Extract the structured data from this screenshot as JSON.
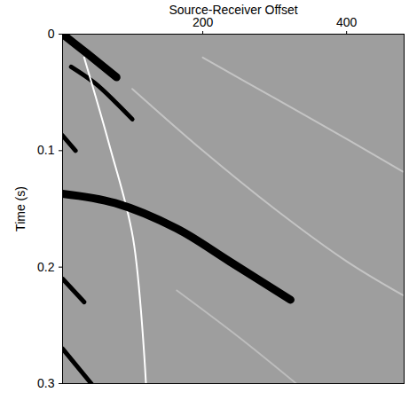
{
  "chart_data": {
    "type": "line",
    "x_label": "Source-Receiver Offset",
    "y_label": "Time (s)",
    "xlim": [
      5,
      480
    ],
    "xticks": [
      200,
      400
    ],
    "ylim": [
      0,
      0.3
    ],
    "yticks": [
      0,
      0.1,
      0.2,
      0.3
    ],
    "grid": false,
    "series": [
      {
        "color": "#c4c4c4",
        "line_style": "thin",
        "x": [
          200,
          300,
          400,
          478
        ],
        "values": [
          0.02,
          0.055,
          0.09,
          0.118
        ]
      },
      {
        "color": "#c4c4c4",
        "line_style": "thin",
        "x": [
          102,
          200,
          300,
          400,
          478
        ],
        "values": [
          0.047,
          0.1,
          0.15,
          0.195,
          0.224
        ]
      },
      {
        "color": "#bdbdbd",
        "line_style": "thin",
        "x": [
          164,
          250,
          330
        ],
        "values": [
          0.22,
          0.26,
          0.3
        ]
      },
      {
        "color": "#000000",
        "line_style": "thick",
        "x": [
          5,
          40,
          80
        ],
        "values": [
          0,
          0.017,
          0.037
        ]
      },
      {
        "color": "#000000",
        "line_style": "medium",
        "x": [
          17,
          50,
          78,
          102
        ],
        "values": [
          0.028,
          0.042,
          0.058,
          0.073
        ]
      },
      {
        "color": "#ffffff",
        "line_style": "thin",
        "x": [
          35,
          70,
          103,
          121
        ],
        "values": [
          0.02,
          0.095,
          0.175,
          0.3
        ]
      },
      {
        "color": "#000000",
        "line_style": "medium",
        "x": [
          5,
          23
        ],
        "values": [
          0.087,
          0.1
        ]
      },
      {
        "color": "#000000",
        "line_style": "thick",
        "x": [
          5,
          78,
          164,
          237,
          322
        ],
        "values": [
          0.137,
          0.145,
          0.167,
          0.195,
          0.228
        ]
      },
      {
        "color": "#000000",
        "line_style": "medium",
        "x": [
          5,
          35
        ],
        "values": [
          0.21,
          0.23
        ]
      },
      {
        "color": "#000000",
        "line_style": "medium",
        "x": [
          5,
          45
        ],
        "values": [
          0.27,
          0.3
        ]
      }
    ]
  }
}
